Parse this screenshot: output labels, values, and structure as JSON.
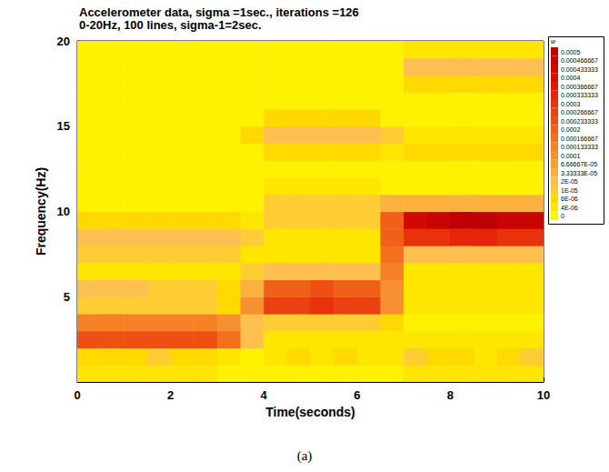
{
  "chart_data": {
    "type": "heatmap",
    "title": "Accelerometer data, sigma =1sec., iterations =126",
    "subtitle": "0-20Hz, 100 lines, sigma-1=2sec.",
    "caption": "(a)",
    "x_label": "Time(seconds)",
    "y_label": "Frequency(Hz)",
    "xlim": [
      0,
      10
    ],
    "xticks": [
      0,
      2,
      4,
      6,
      8,
      10
    ],
    "ylim": [
      0,
      20
    ],
    "yticks": [
      5,
      10,
      15,
      20
    ],
    "grid": false,
    "cells": {
      "x": [
        0.25,
        0.75,
        1.25,
        1.75,
        2.25,
        2.75,
        3.25,
        3.75,
        4.25,
        4.75,
        5.25,
        5.75,
        6.25,
        6.75,
        7.25,
        7.75,
        8.25,
        8.75,
        9.25,
        9.75
      ],
      "y": [
        0.5,
        1.5,
        2.5,
        3.5,
        4.5,
        5.5,
        6.5,
        7.5,
        8.5,
        9.5,
        10.5,
        11.5,
        12.5,
        13.5,
        14.5,
        15.5,
        16.5,
        17.5,
        18.5,
        19.5
      ],
      "values": [
        [
          5e-06,
          5e-06,
          5e-06,
          5e-06,
          5e-06,
          5e-06,
          3e-06,
          2e-06,
          2e-06,
          2e-06,
          2e-06,
          2e-06,
          2e-06,
          3e-06,
          5e-06,
          5e-06,
          5e-06,
          5e-06,
          5e-06,
          5e-06
        ],
        [
          8e-06,
          6e-06,
          8e-06,
          1.2e-05,
          8e-06,
          6e-06,
          5e-06,
          3e-06,
          5e-06,
          6e-06,
          5e-06,
          6e-06,
          4e-06,
          4e-06,
          1.2e-05,
          8e-06,
          6e-06,
          5e-06,
          8e-06,
          1.2e-05
        ],
        [
          0.00025,
          0.00026,
          0.00026,
          0.00025,
          0.00025,
          0.00024,
          0.00018,
          3e-05,
          5e-06,
          5e-06,
          5e-06,
          5e-06,
          5e-06,
          4e-06,
          5e-06,
          4e-06,
          4e-06,
          5e-06,
          4e-06,
          4e-06
        ],
        [
          0.00015,
          0.00016,
          0.00016,
          0.00015,
          0.00015,
          0.00014,
          0.0001,
          2e-05,
          1e-05,
          1e-05,
          1e-05,
          1e-05,
          1e-05,
          6e-06,
          3e-06,
          3e-06,
          3e-06,
          3e-06,
          3e-06,
          3e-06
        ],
        [
          1.2e-05,
          1.2e-05,
          1.2e-05,
          1.2e-05,
          1e-05,
          1e-05,
          8e-06,
          0.0001,
          0.00028,
          0.00029,
          0.0003,
          0.00029,
          0.00028,
          0.0001,
          4e-06,
          4e-06,
          4e-06,
          4e-06,
          4e-06,
          4e-06
        ],
        [
          2e-05,
          2e-05,
          2e-05,
          1.5e-05,
          1.2e-05,
          1e-05,
          8e-06,
          6e-05,
          0.00022,
          0.00023,
          0.00024,
          0.00023,
          0.00022,
          0.00012,
          4e-06,
          4e-06,
          4e-06,
          4e-06,
          4e-06,
          4e-06
        ],
        [
          4e-06,
          4e-06,
          4e-06,
          4e-06,
          4e-06,
          4e-06,
          4e-06,
          1e-05,
          2e-05,
          2e-05,
          2e-05,
          2e-05,
          2e-05,
          0.00015,
          5e-06,
          5e-06,
          5e-06,
          5e-06,
          5e-06,
          5e-06
        ],
        [
          1e-05,
          1e-05,
          1e-05,
          1e-05,
          1e-05,
          1e-05,
          1e-05,
          5e-06,
          5e-06,
          5e-06,
          5e-06,
          5e-06,
          5e-06,
          0.00018,
          3e-05,
          3e-05,
          3e-05,
          3e-05,
          3e-05,
          3e-05
        ],
        [
          2.5e-05,
          2.5e-05,
          2.5e-05,
          2.5e-05,
          2.5e-05,
          2.5e-05,
          2.5e-05,
          1e-05,
          4e-06,
          4e-06,
          4e-06,
          4e-06,
          4e-06,
          0.00022,
          0.00032,
          0.00033,
          0.00034,
          0.00034,
          0.00033,
          0.00032
        ],
        [
          6e-06,
          6e-06,
          6e-06,
          6e-06,
          6e-06,
          6e-06,
          6e-06,
          4e-06,
          1.2e-05,
          1.2e-05,
          1.2e-05,
          1.2e-05,
          1.2e-05,
          0.0002,
          0.00046,
          0.00048,
          0.0005,
          0.0005,
          0.00049,
          0.00048
        ],
        [
          3e-06,
          3e-06,
          3e-06,
          3e-06,
          3e-06,
          3e-06,
          3e-06,
          3e-06,
          1.5e-05,
          1.5e-05,
          1.5e-05,
          1.5e-05,
          1.5e-05,
          6e-05,
          4e-05,
          4e-05,
          4e-05,
          4e-05,
          4e-05,
          4e-05
        ],
        [
          3e-06,
          3e-06,
          3e-06,
          3e-06,
          3e-06,
          3e-06,
          3e-06,
          3e-06,
          5e-06,
          5e-06,
          5e-06,
          5e-06,
          5e-06,
          3e-06,
          3e-06,
          3e-06,
          3e-06,
          3e-06,
          3e-06,
          3e-06
        ],
        [
          3e-06,
          3e-06,
          3e-06,
          3e-06,
          3e-06,
          3e-06,
          3e-06,
          3e-06,
          3e-06,
          3e-06,
          3e-06,
          3e-06,
          3e-06,
          3e-06,
          3e-06,
          3e-06,
          3e-06,
          3e-06,
          3e-06,
          3e-06
        ],
        [
          3e-06,
          3e-06,
          3e-06,
          3e-06,
          3e-06,
          3e-06,
          3e-06,
          3e-06,
          6e-06,
          6e-06,
          6e-06,
          6e-06,
          6e-06,
          4e-06,
          6e-06,
          6e-06,
          6e-06,
          6e-06,
          6e-06,
          6e-06
        ],
        [
          3e-06,
          3e-06,
          3e-06,
          3e-06,
          3e-06,
          3e-06,
          3e-06,
          6e-06,
          3e-05,
          3e-05,
          3e-05,
          3e-05,
          3e-05,
          1.2e-05,
          5e-06,
          5e-06,
          5e-06,
          5e-06,
          5e-06,
          5e-06
        ],
        [
          3e-06,
          3e-06,
          3e-06,
          3e-06,
          3e-06,
          3e-06,
          3e-06,
          3e-06,
          8e-06,
          8e-06,
          8e-06,
          8e-06,
          8e-06,
          3e-06,
          3e-06,
          3e-06,
          3e-06,
          3e-06,
          3e-06,
          3e-06
        ],
        [
          2e-06,
          2e-06,
          2e-06,
          2e-06,
          2e-06,
          2e-06,
          2e-06,
          2e-06,
          2e-06,
          2e-06,
          2e-06,
          2e-06,
          2e-06,
          2e-06,
          2e-06,
          2e-06,
          2e-06,
          2e-06,
          2e-06,
          2e-06
        ],
        [
          3e-06,
          3e-06,
          3e-06,
          3e-06,
          3e-06,
          3e-06,
          3e-06,
          3e-06,
          3e-06,
          3e-06,
          3e-06,
          3e-06,
          3e-06,
          3e-06,
          6e-06,
          6e-06,
          6e-06,
          6e-06,
          6e-06,
          6e-06
        ],
        [
          2e-06,
          2e-06,
          2e-06,
          2e-06,
          2e-06,
          2e-06,
          2e-06,
          2e-06,
          2e-06,
          2e-06,
          2e-06,
          2e-06,
          2e-06,
          3e-06,
          2.5e-05,
          2.5e-05,
          2.5e-05,
          2.5e-05,
          2.5e-05,
          2.5e-05
        ],
        [
          2e-06,
          2e-06,
          2e-06,
          2e-06,
          2e-06,
          2e-06,
          2e-06,
          2e-06,
          2e-06,
          2e-06,
          2e-06,
          2e-06,
          2e-06,
          2e-06,
          5e-06,
          5e-06,
          5e-06,
          5e-06,
          5e-06,
          5e-06
        ]
      ]
    },
    "colorbar": {
      "title": "w",
      "levels": [
        0.0005,
        0.000466667,
        0.000433333,
        0.0004,
        0.000366667,
        0.000333333,
        0.0003,
        0.000266667,
        0.000233333,
        0.0002,
        0.000166667,
        0.000133333,
        0.0001,
        {
          "value": 6.66667e-05,
          "label": "6.66667E-05"
        },
        {
          "value": 3.33333e-05,
          "label": "3.33333E-05"
        },
        {
          "value": 2e-05,
          "label": "2E-05"
        },
        {
          "value": 1e-05,
          "label": "1E-05"
        },
        {
          "value": 6e-06,
          "label": "6E-06"
        },
        {
          "value": 4e-06,
          "label": "4E-06"
        },
        0
      ],
      "colors": [
        "#c00000",
        "#ca0401",
        "#d20802",
        "#da0e04",
        "#e01806",
        "#e52408",
        "#e8320c",
        "#eb4010",
        "#ee5014",
        "#f06018",
        "#f37020",
        "#f58028",
        "#f79030",
        "#f9a030",
        "#fbb040",
        "#fdbf50",
        "#ffcc33",
        "#ffd900",
        "#ffe600",
        "#fff200"
      ]
    }
  }
}
